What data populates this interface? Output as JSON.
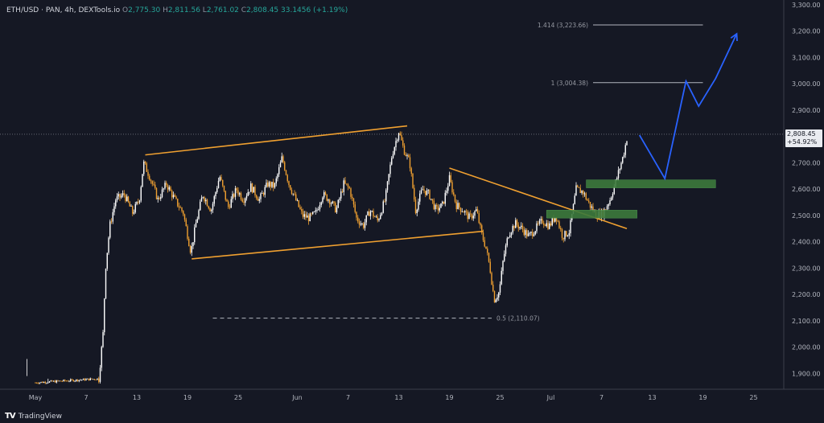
{
  "header": {
    "symbol": "ETH/USD",
    "exchange": "PAN",
    "interval": "4h",
    "source": "DEXTools.io",
    "open_label": "O",
    "open": "2,775.30",
    "high_label": "H",
    "high": "2,811.56",
    "low_label": "L",
    "low": "2,761.02",
    "close_label": "C",
    "close": "2,808.45",
    "change": "33.1456 (+1.19%)"
  },
  "price_tag": {
    "price": "2,808.45",
    "pct": "+54.92%"
  },
  "footer": {
    "logo_text": "TV",
    "brand": "TradingView"
  },
  "colors": {
    "background": "#151824",
    "candle_up": "#ffffff",
    "candle_down": "#f0a030",
    "trendline": "#f0a030",
    "zone": "#3c7a3c",
    "projection": "#2962ff",
    "fib": "#b2b5be"
  },
  "chart_data": {
    "type": "candlestick",
    "title": "",
    "xlabel": "",
    "ylabel": "",
    "ylim": [
      1840,
      3300
    ],
    "yticks": [
      "1,900.00",
      "2,000.00",
      "2,100.00",
      "2,200.00",
      "2,300.00",
      "2,400.00",
      "2,500.00",
      "2,600.00",
      "2,700.00",
      "2,800.00",
      "2,900.00",
      "3,000.00",
      "3,100.00",
      "3,200.00",
      "3,300.00"
    ],
    "ytick_values": [
      1900,
      2000,
      2100,
      2200,
      2300,
      2400,
      2500,
      2600,
      2700,
      2800,
      2900,
      3000,
      3100,
      3200,
      3300
    ],
    "xticks": [
      {
        "label": "May",
        "day": 0
      },
      {
        "label": "7",
        "day": 6
      },
      {
        "label": "13",
        "day": 12
      },
      {
        "label": "19",
        "day": 18
      },
      {
        "label": "25",
        "day": 24
      },
      {
        "label": "Jun",
        "day": 31
      },
      {
        "label": "7",
        "day": 37
      },
      {
        "label": "13",
        "day": 43
      },
      {
        "label": "19",
        "day": 49
      },
      {
        "label": "25",
        "day": 55
      },
      {
        "label": "Jul",
        "day": 61
      },
      {
        "label": "7",
        "day": 67
      },
      {
        "label": "13",
        "day": 73
      },
      {
        "label": "19",
        "day": 79
      },
      {
        "label": "25",
        "day": 85
      }
    ],
    "price_path": [
      [
        0,
        1865
      ],
      [
        7.5,
        1880
      ],
      [
        8,
        2050
      ],
      [
        8.3,
        2300
      ],
      [
        8.8,
        2460
      ],
      [
        9.5,
        2560
      ],
      [
        10.5,
        2580
      ],
      [
        11.5,
        2510
      ],
      [
        12.3,
        2560
      ],
      [
        12.8,
        2700
      ],
      [
        13.5,
        2650
      ],
      [
        14.5,
        2560
      ],
      [
        15.5,
        2620
      ],
      [
        16.5,
        2560
      ],
      [
        17.5,
        2510
      ],
      [
        18.4,
        2360
      ],
      [
        19,
        2470
      ],
      [
        19.8,
        2580
      ],
      [
        20.8,
        2520
      ],
      [
        21.8,
        2650
      ],
      [
        22.8,
        2530
      ],
      [
        23.8,
        2600
      ],
      [
        24.6,
        2560
      ],
      [
        25.5,
        2610
      ],
      [
        26.5,
        2560
      ],
      [
        27.5,
        2620
      ],
      [
        28.3,
        2610
      ],
      [
        29.2,
        2720
      ],
      [
        30,
        2620
      ],
      [
        30.8,
        2560
      ],
      [
        31.6,
        2500
      ],
      [
        32.4,
        2490
      ],
      [
        33.2,
        2510
      ],
      [
        34,
        2580
      ],
      [
        34.8,
        2560
      ],
      [
        35.6,
        2520
      ],
      [
        36.5,
        2620
      ],
      [
        37.2,
        2600
      ],
      [
        38,
        2490
      ],
      [
        38.8,
        2460
      ],
      [
        39.6,
        2520
      ],
      [
        40.5,
        2480
      ],
      [
        41.4,
        2560
      ],
      [
        42.2,
        2730
      ],
      [
        43,
        2820
      ],
      [
        43.6,
        2750
      ],
      [
        44.3,
        2700
      ],
      [
        45,
        2520
      ],
      [
        45.8,
        2600
      ],
      [
        46.6,
        2580
      ],
      [
        47.4,
        2520
      ],
      [
        48.2,
        2540
      ],
      [
        49,
        2640
      ],
      [
        49.8,
        2540
      ],
      [
        50.6,
        2520
      ],
      [
        51.4,
        2490
      ],
      [
        52.2,
        2520
      ],
      [
        52.8,
        2430
      ],
      [
        53.3,
        2380
      ],
      [
        53.8,
        2300
      ],
      [
        54.3,
        2180
      ],
      [
        54.9,
        2210
      ],
      [
        55.4,
        2340
      ],
      [
        56,
        2430
      ],
      [
        56.8,
        2470
      ],
      [
        57.6,
        2450
      ],
      [
        58.4,
        2420
      ],
      [
        59.2,
        2450
      ],
      [
        60,
        2480
      ],
      [
        60.8,
        2460
      ],
      [
        61.6,
        2500
      ],
      [
        62.4,
        2420
      ],
      [
        63.2,
        2440
      ],
      [
        64,
        2600
      ],
      [
        64.8,
        2590
      ],
      [
        65.6,
        2540
      ],
      [
        66.4,
        2500
      ],
      [
        67.2,
        2510
      ],
      [
        68,
        2560
      ],
      [
        68.8,
        2640
      ],
      [
        69.6,
        2730
      ],
      [
        70.1,
        2808.45
      ]
    ],
    "candle_up": "#ffffff",
    "candle_down": "#f0a030",
    "lines": [
      {
        "name": "upper-channel",
        "x": [
          13,
          44
        ],
        "y": [
          2730,
          2840
        ]
      },
      {
        "name": "lower-channel",
        "x": [
          18.5,
          53
        ],
        "y": [
          2335,
          2440
        ]
      },
      {
        "name": "descending-trendline",
        "x": [
          49,
          70
        ],
        "y": [
          2680,
          2450
        ]
      }
    ],
    "zones": [
      {
        "name": "support-zone-1",
        "x": [
          60.5,
          71.2
        ],
        "y": [
          2490,
          2520
        ]
      },
      {
        "name": "support-zone-2",
        "x": [
          65.2,
          80.5
        ],
        "y": [
          2605,
          2635
        ]
      }
    ],
    "projection": {
      "x": [
        71.5,
        74.5,
        77,
        78.5,
        80.5,
        83
      ],
      "y": [
        2805,
        2640,
        3010,
        2915,
        3020,
        3190
      ]
    },
    "fib_levels": [
      {
        "label": "0.5 (2,110.07)",
        "value": 2110.07,
        "x": [
          21,
          54
        ],
        "dashed": true
      },
      {
        "label": "1 (3,004.38)",
        "value": 3004.38,
        "x": [
          66,
          79
        ],
        "dashed": false
      },
      {
        "label": "1.414 (3,223.66)",
        "value": 3223.66,
        "x": [
          66,
          79
        ],
        "dashed": false
      }
    ],
    "current_price": 2808.45,
    "grid": false,
    "legend": "none"
  }
}
